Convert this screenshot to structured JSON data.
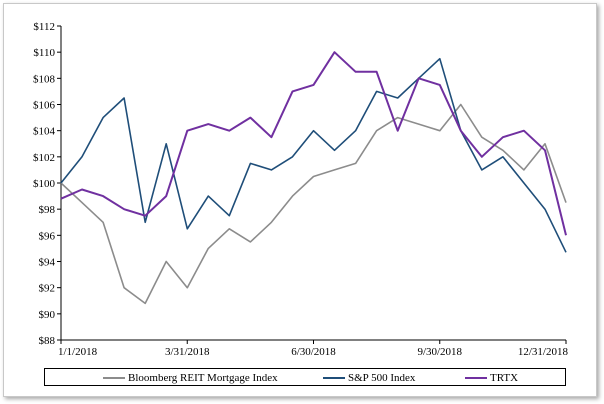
{
  "chart_data": {
    "type": "line",
    "title": "",
    "xlabel": "",
    "ylabel": "",
    "ylim": [
      88,
      112
    ],
    "y_ticks": [
      "$88",
      "$90",
      "$92",
      "$94",
      "$96",
      "$98",
      "$100",
      "$102",
      "$104",
      "$106",
      "$108",
      "$110",
      "$112"
    ],
    "x_ticks": [
      "1/1/2018",
      "3/31/2018",
      "6/30/2018",
      "9/30/2018",
      "12/31/2018"
    ],
    "grid": false,
    "legend_position": "bottom",
    "x_months": [
      0,
      0.5,
      1,
      1.5,
      2,
      2.5,
      3,
      3.5,
      4,
      4.5,
      5,
      5.5,
      6,
      6.5,
      7,
      7.5,
      8,
      8.5,
      9,
      9.5,
      10,
      10.5,
      11,
      11.5,
      12
    ],
    "series": [
      {
        "name": "Bloomberg REIT Mortgage Index",
        "color": "#8c8c8c",
        "values": [
          100,
          98.5,
          97,
          92,
          90.8,
          94,
          92,
          95,
          96.5,
          95.5,
          97,
          99,
          100.5,
          101,
          101.5,
          104,
          105,
          104.5,
          104,
          106,
          103.5,
          102.5,
          101,
          103,
          98.5
        ]
      },
      {
        "name": "S&P 500 Index",
        "color": "#1f4e79",
        "values": [
          100,
          102,
          105,
          106.5,
          97,
          103,
          96.5,
          99,
          97.5,
          101.5,
          101,
          102,
          104,
          102.5,
          104,
          107,
          106.5,
          108,
          109.5,
          104,
          101,
          102,
          100,
          98,
          94.7
        ]
      },
      {
        "name": "TRTX",
        "color": "#7030a0",
        "values": [
          98.8,
          99.5,
          99,
          98,
          97.5,
          99,
          104,
          104.5,
          104,
          105,
          103.5,
          107,
          107.5,
          110,
          108.5,
          108.5,
          104,
          108,
          107.5,
          104,
          102,
          103.5,
          104,
          102.5,
          96
        ]
      }
    ]
  }
}
